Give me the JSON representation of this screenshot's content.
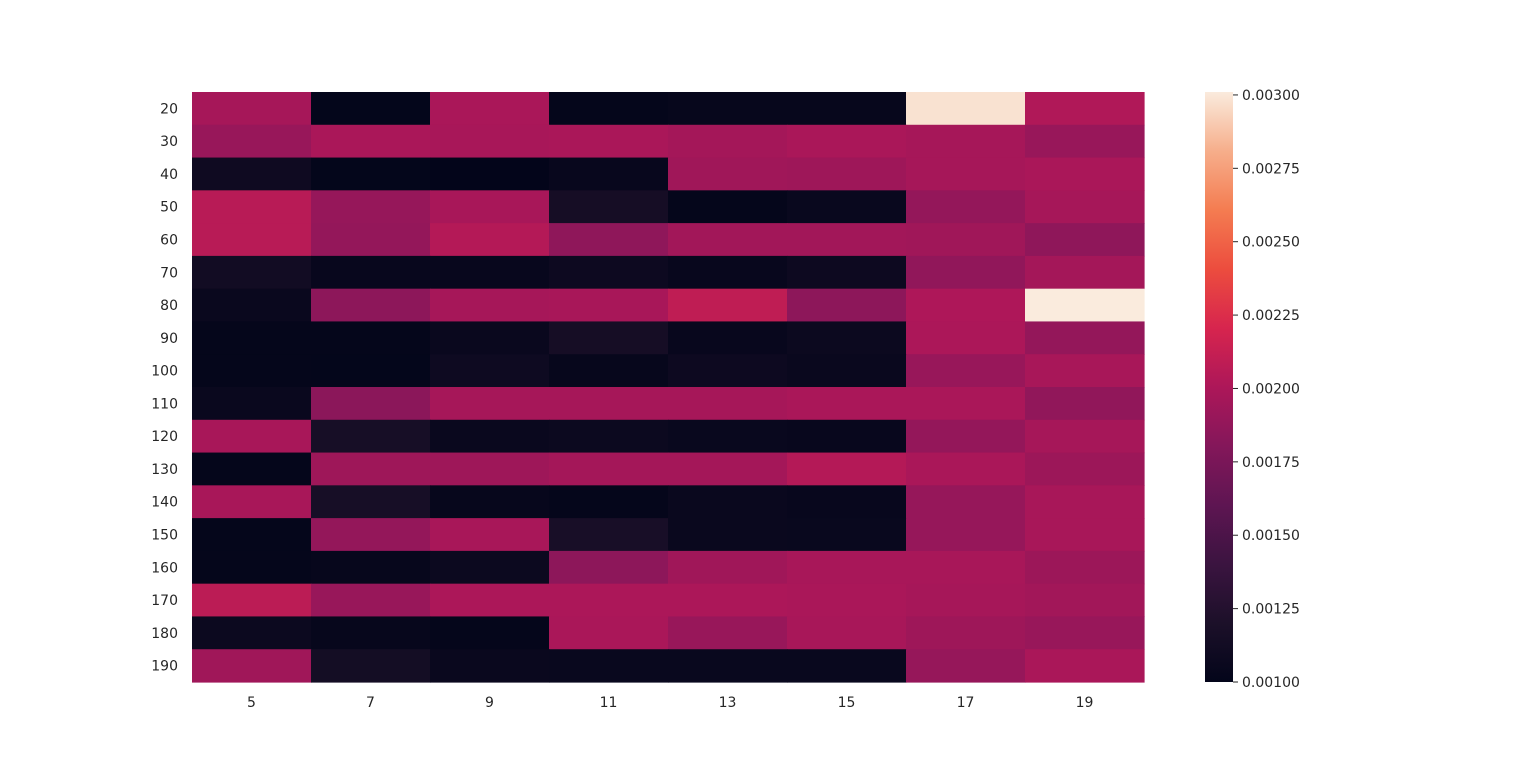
{
  "chart_data": {
    "type": "heatmap",
    "x_categories": [
      "5",
      "7",
      "9",
      "11",
      "13",
      "15",
      "17",
      "19"
    ],
    "y_categories": [
      "20",
      "30",
      "40",
      "50",
      "60",
      "70",
      "80",
      "90",
      "100",
      "110",
      "120",
      "130",
      "140",
      "150",
      "160",
      "170",
      "180",
      "190"
    ],
    "values": [
      [
        0.00197,
        0.00101,
        0.00199,
        0.00102,
        0.00103,
        0.00103,
        0.00298,
        0.00202
      ],
      [
        0.0019,
        0.00199,
        0.00198,
        0.00199,
        0.00196,
        0.00199,
        0.00197,
        0.0019
      ],
      [
        0.0011,
        0.00101,
        0.001,
        0.00104,
        0.00194,
        0.00193,
        0.00197,
        0.00199
      ],
      [
        0.00206,
        0.00189,
        0.00198,
        0.00115,
        0.00102,
        0.00105,
        0.00188,
        0.00197
      ],
      [
        0.00206,
        0.00188,
        0.00204,
        0.00186,
        0.00195,
        0.00195,
        0.00194,
        0.00186
      ],
      [
        0.00112,
        0.00104,
        0.00104,
        0.00108,
        0.00104,
        0.00108,
        0.00187,
        0.00196
      ],
      [
        0.00106,
        0.00185,
        0.00197,
        0.00198,
        0.00209,
        0.00185,
        0.00201,
        0.00301
      ],
      [
        0.00102,
        0.00102,
        0.00106,
        0.00115,
        0.00104,
        0.00107,
        0.002,
        0.00188
      ],
      [
        0.00102,
        0.00101,
        0.00109,
        0.00103,
        0.00108,
        0.00106,
        0.0019,
        0.00198
      ],
      [
        0.00106,
        0.00184,
        0.00197,
        0.00197,
        0.00197,
        0.00199,
        0.00199,
        0.00187
      ],
      [
        0.00198,
        0.00116,
        0.00106,
        0.00107,
        0.00105,
        0.00104,
        0.00188,
        0.00197
      ],
      [
        0.00102,
        0.00193,
        0.00193,
        0.00196,
        0.00196,
        0.00204,
        0.00199,
        0.00192
      ],
      [
        0.00198,
        0.00116,
        0.00103,
        0.00102,
        0.00106,
        0.00104,
        0.00189,
        0.00198
      ],
      [
        0.00102,
        0.00188,
        0.00198,
        0.00117,
        0.00106,
        0.00105,
        0.00189,
        0.00198
      ],
      [
        0.00102,
        0.00103,
        0.00107,
        0.00185,
        0.00194,
        0.00198,
        0.00198,
        0.00192
      ],
      [
        0.00207,
        0.0019,
        0.002,
        0.002,
        0.002,
        0.00199,
        0.00197,
        0.00195
      ],
      [
        0.00107,
        0.00103,
        0.00102,
        0.00199,
        0.0019,
        0.00198,
        0.00193,
        0.0019
      ],
      [
        0.00194,
        0.00114,
        0.00106,
        0.00105,
        0.00105,
        0.00105,
        0.00189,
        0.00199
      ]
    ],
    "color_range": [
      0.001,
      0.00301
    ],
    "colormap": "rocket",
    "colorbar_ticks": [
      0.003,
      0.00275,
      0.0025,
      0.00225,
      0.002,
      0.00175,
      0.0015,
      0.00125,
      0.001
    ],
    "colorbar_tick_labels": [
      "0.00300",
      "0.00275",
      "0.00250",
      "0.00225",
      "0.00200",
      "0.00175",
      "0.00150",
      "0.00125",
      "0.00100"
    ],
    "legend": "colorbar-right",
    "grid": false
  }
}
